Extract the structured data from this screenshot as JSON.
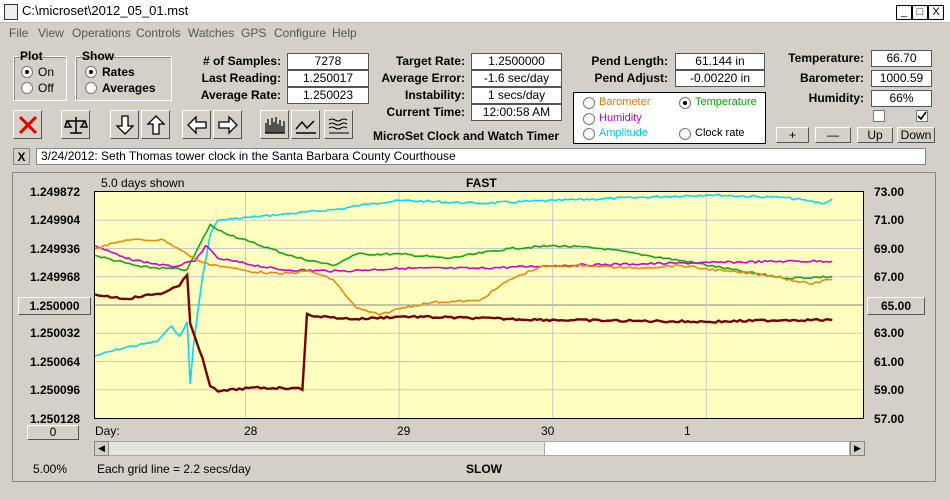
{
  "window": {
    "title": "C:\\microset\\2012_05_01.mst",
    "minimize": "_",
    "maximize": "□",
    "close": "X"
  },
  "menu": [
    "File",
    "View",
    "Operations",
    "Controls",
    "Watches",
    "GPS",
    "Configure",
    "Help"
  ],
  "plot_group": {
    "title": "Plot",
    "on": "On",
    "off": "Off",
    "selected": "On"
  },
  "show_group": {
    "title": "Show",
    "rates": "Rates",
    "averages": "Averages",
    "selected": "Rates"
  },
  "stats": {
    "samples_label": "# of Samples:",
    "samples": "7278",
    "last_reading_label": "Last Reading:",
    "last_reading": "1.250017",
    "average_rate_label": "Average Rate:",
    "average_rate": "1.250023",
    "target_rate_label": "Target Rate:",
    "target_rate": "1.2500000",
    "average_error_label": "Average Error:",
    "average_error": "-1.6 sec/day",
    "instability_label": "Instability:",
    "instability": "1 secs/day",
    "current_time_label": "Current Time:",
    "current_time": "12:00:58 AM",
    "pend_length_label": "Pend Length:",
    "pend_length": "61.144 in",
    "pend_adjust_label": "Pend Adjust:",
    "pend_adjust": "-0.00220 in"
  },
  "sensors": {
    "temperature_label": "Temperature:",
    "temperature": "66.70",
    "barometer_label": "Barometer:",
    "barometer": "1000.59",
    "humidity_label": "Humidity:",
    "humidity": "66%"
  },
  "app_caption": "MicroSet Clock and Watch Timer",
  "overlay_options": {
    "barometer": "Barometer",
    "humidity": "Humidity",
    "amplitude": "Amplitude",
    "temperature": "Temperature",
    "clock_rate": "Clock rate",
    "selected": "Temperature",
    "colors": {
      "barometer": "#e07800",
      "humidity": "#c000c0",
      "amplitude": "#00c8e0",
      "temperature": "#00a000",
      "clock_rate": "#000000"
    }
  },
  "scale_buttons": {
    "plus": "+",
    "minus": "—",
    "up": "Up",
    "down": "Down"
  },
  "description_close": "X",
  "description": "3/24/2012: Seth Thomas tower clock in the Santa Barbara County Courthouse",
  "plot": {
    "days_shown": "5.0 days shown",
    "fast_label": "FAST",
    "slow_label": "SLOW",
    "center_left_button": "1.250000",
    "center_right_button": "65.00",
    "left_scroll_value": "0",
    "day_label": "Day:",
    "grid_note": "Each grid line = 2.2 secs/day",
    "percent": "5.00%"
  },
  "chart_data": {
    "type": "line",
    "title": "FAST",
    "x_tick_labels": [
      "28",
      "29",
      "30",
      "1"
    ],
    "y_left_ticks": [
      "1.249872",
      "1.249904",
      "1.249936",
      "1.249968",
      "1.250032",
      "1.250064",
      "1.250096",
      "1.250128"
    ],
    "y_right_ticks": [
      "73.00",
      "71.00",
      "69.00",
      "67.00",
      "63.00",
      "61.00",
      "59.00",
      "57.00"
    ],
    "ylim_left": [
      1.249872,
      1.250128
    ],
    "ylim_right": [
      57,
      73
    ],
    "xlim_days": [
      0,
      5
    ],
    "series": [
      {
        "color": "#00d8ff",
        "axis": "right",
        "points": [
          [
            0,
            61.4
          ],
          [
            0.2,
            62
          ],
          [
            0.4,
            62.4
          ],
          [
            0.5,
            63.5
          ],
          [
            0.55,
            62.8
          ],
          [
            0.6,
            63.8
          ],
          [
            0.62,
            59.4
          ],
          [
            0.64,
            62
          ],
          [
            0.7,
            67
          ],
          [
            0.75,
            70
          ],
          [
            0.8,
            71
          ],
          [
            0.9,
            71.1
          ],
          [
            1.2,
            71.4
          ],
          [
            1.6,
            71.8
          ],
          [
            1.8,
            72.2
          ],
          [
            2.0,
            72.4
          ],
          [
            2.5,
            72.2
          ],
          [
            3.0,
            72.4
          ],
          [
            3.5,
            72.6
          ],
          [
            4.0,
            72.8
          ],
          [
            4.5,
            72.6
          ],
          [
            4.75,
            72.2
          ],
          [
            4.8,
            72.5
          ]
        ]
      },
      {
        "color": "#10a810",
        "axis": "right",
        "points": [
          [
            0,
            68.5
          ],
          [
            0.3,
            67.7
          ],
          [
            0.6,
            67.5
          ],
          [
            0.75,
            70.7
          ],
          [
            0.8,
            70.3
          ],
          [
            1.0,
            69.5
          ],
          [
            1.3,
            68.4
          ],
          [
            1.55,
            67.8
          ],
          [
            1.7,
            68.6
          ],
          [
            2.0,
            68.6
          ],
          [
            2.3,
            68.3
          ],
          [
            2.7,
            69.0
          ],
          [
            3.0,
            69.2
          ],
          [
            3.3,
            69
          ],
          [
            3.6,
            68.5
          ],
          [
            3.9,
            68
          ],
          [
            4.2,
            67.4
          ],
          [
            4.5,
            66.9
          ],
          [
            4.8,
            67
          ]
        ]
      },
      {
        "color": "#d000d0",
        "axis": "right",
        "points": [
          [
            0,
            69.2
          ],
          [
            0.2,
            68.3
          ],
          [
            0.5,
            67.7
          ],
          [
            0.65,
            68.1
          ],
          [
            0.72,
            69.2
          ],
          [
            0.8,
            68.3
          ],
          [
            1.2,
            67.5
          ],
          [
            1.6,
            67.4
          ],
          [
            2.0,
            67.6
          ],
          [
            2.5,
            67.6
          ],
          [
            3.0,
            67.8
          ],
          [
            3.5,
            67.9
          ],
          [
            4.0,
            68
          ],
          [
            4.5,
            68.1
          ],
          [
            4.8,
            68.1
          ]
        ]
      },
      {
        "color": "#e88a10",
        "axis": "right",
        "points": [
          [
            0,
            69
          ],
          [
            0.2,
            69.6
          ],
          [
            0.45,
            69.6
          ],
          [
            0.6,
            68.6
          ],
          [
            0.7,
            68.0
          ],
          [
            0.8,
            67.8
          ],
          [
            1.0,
            67.4
          ],
          [
            1.2,
            67.2
          ],
          [
            1.4,
            67.4
          ],
          [
            1.55,
            66.8
          ],
          [
            1.7,
            64.8
          ],
          [
            1.85,
            64.3
          ],
          [
            2.0,
            64.8
          ],
          [
            2.2,
            65.2
          ],
          [
            2.5,
            65.3
          ],
          [
            2.7,
            66.8
          ],
          [
            2.9,
            67.7
          ],
          [
            3.2,
            67.8
          ],
          [
            3.5,
            67.6
          ],
          [
            3.8,
            67.8
          ],
          [
            4.1,
            67.4
          ],
          [
            4.4,
            67.1
          ],
          [
            4.65,
            66.5
          ],
          [
            4.8,
            66.8
          ]
        ]
      },
      {
        "color": "#7a0000",
        "axis": "left",
        "points": [
          [
            0,
            1.249988
          ],
          [
            0.2,
            1.249993
          ],
          [
            0.45,
            1.249986
          ],
          [
            0.55,
            1.249978
          ],
          [
            0.6,
            1.249966
          ],
          [
            0.62,
            1.250021
          ],
          [
            0.7,
            1.25006
          ],
          [
            0.75,
            1.250092
          ],
          [
            0.8,
            1.250098
          ],
          [
            1.0,
            1.250094
          ],
          [
            1.3,
            1.250094
          ],
          [
            1.35,
            1.250096
          ],
          [
            1.38,
            1.25001
          ],
          [
            1.45,
            1.250013
          ],
          [
            1.7,
            1.250016
          ],
          [
            2.0,
            1.250013
          ],
          [
            2.5,
            1.250015
          ],
          [
            3.0,
            1.250017
          ],
          [
            3.5,
            1.250018
          ],
          [
            4.0,
            1.250019
          ],
          [
            4.5,
            1.250017
          ],
          [
            4.8,
            1.250017
          ]
        ]
      }
    ]
  }
}
